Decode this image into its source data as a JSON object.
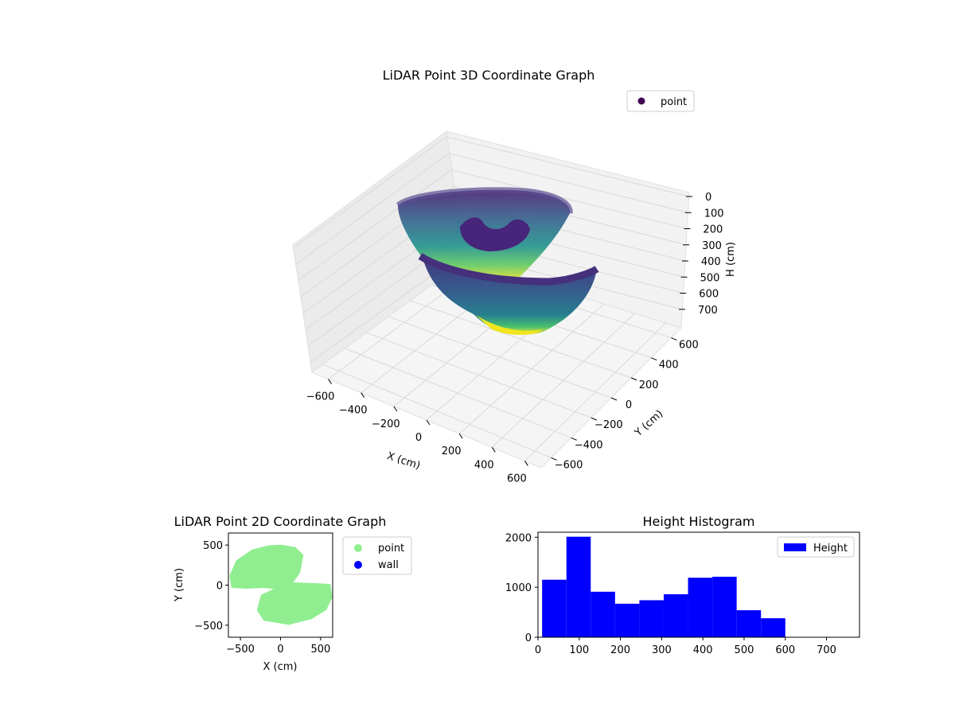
{
  "chart_data": [
    {
      "type": "scatter3d",
      "title": "LiDAR Point 3D Coordinate Graph",
      "xlabel": "X (cm)",
      "ylabel": "Y (cm)",
      "zlabel": "H (cm)",
      "xlim": [
        -700,
        700
      ],
      "ylim": [
        -700,
        700
      ],
      "zlim": [
        0,
        780
      ],
      "z_inverted": true,
      "x_ticks": [
        -600,
        -400,
        -200,
        0,
        200,
        400,
        600
      ],
      "y_ticks": [
        -600,
        -400,
        -200,
        0,
        200,
        400,
        600
      ],
      "z_ticks": [
        0,
        100,
        200,
        300,
        400,
        500,
        600,
        700
      ],
      "colormap": "viridis",
      "legend": {
        "label": "point",
        "marker_color": "#440154",
        "position": "top-right"
      },
      "grid": true,
      "surfaces": [
        {
          "shape": "half-bowl-back",
          "radius_cm": 520,
          "max_height_cm": 730
        },
        {
          "shape": "half-bowl-front",
          "radius_cm": 520,
          "max_height_cm": 730
        },
        {
          "shape": "inner-arc",
          "radius_cm": 180,
          "height_cm": 250
        }
      ]
    },
    {
      "type": "scatter",
      "title": "LiDAR Point 2D Coordinate Graph",
      "xlabel": "X (cm)",
      "ylabel": "Y (cm)",
      "xlim": [
        -650,
        650
      ],
      "ylim": [
        -650,
        650
      ],
      "x_ticks": [
        -500,
        0,
        500
      ],
      "y_ticks": [
        -500,
        0,
        500
      ],
      "series": [
        {
          "name": "point",
          "color": "#90ee90",
          "outline": [
            [
              -350,
              430
            ],
            [
              -150,
              480
            ],
            [
              0,
              490
            ],
            [
              180,
              460
            ],
            [
              270,
              370
            ],
            [
              230,
              160
            ],
            [
              130,
              20
            ],
            [
              420,
              10
            ],
            [
              610,
              0
            ],
            [
              630,
              -150
            ],
            [
              560,
              -300
            ],
            [
              380,
              -410
            ],
            [
              100,
              -480
            ],
            [
              -200,
              -430
            ],
            [
              -280,
              -310
            ],
            [
              -230,
              -130
            ],
            [
              -30,
              -40
            ],
            [
              -200,
              -20
            ],
            [
              -430,
              -30
            ],
            [
              -600,
              -20
            ],
            [
              -620,
              120
            ],
            [
              -540,
              300
            ]
          ]
        },
        {
          "name": "wall",
          "color": "#0000ff",
          "outline": []
        }
      ],
      "legend_position": "right-outside"
    },
    {
      "type": "histogram",
      "title": "Height Histogram",
      "xlim": [
        0,
        780
      ],
      "ylim": [
        0,
        2100
      ],
      "x_ticks": [
        0,
        100,
        200,
        300,
        400,
        500,
        600,
        700
      ],
      "y_ticks": [
        0,
        1000,
        2000
      ],
      "color": "#0000ff",
      "legend": {
        "label": "Height",
        "position": "top-right"
      },
      "bins": [
        {
          "start": 10,
          "end": 69,
          "count": 1150
        },
        {
          "start": 69,
          "end": 128,
          "count": 2010
        },
        {
          "start": 128,
          "end": 187,
          "count": 910
        },
        {
          "start": 187,
          "end": 246,
          "count": 670
        },
        {
          "start": 246,
          "end": 305,
          "count": 740
        },
        {
          "start": 305,
          "end": 364,
          "count": 860
        },
        {
          "start": 364,
          "end": 423,
          "count": 1190
        },
        {
          "start": 423,
          "end": 482,
          "count": 1210
        },
        {
          "start": 482,
          "end": 541,
          "count": 540
        },
        {
          "start": 541,
          "end": 600,
          "count": 380
        }
      ]
    }
  ]
}
